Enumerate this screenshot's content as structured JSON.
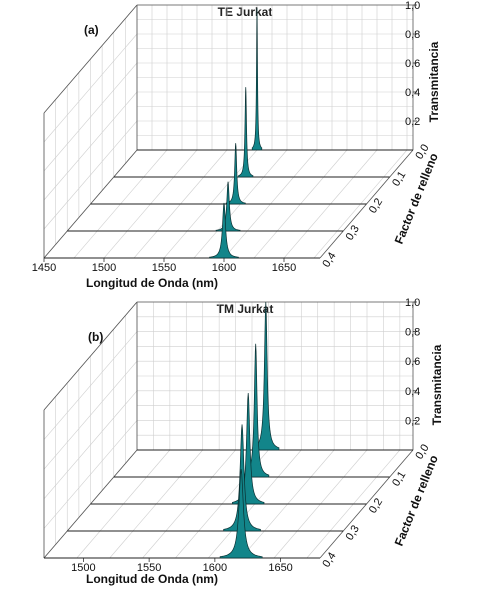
{
  "chart_data": [
    {
      "type": "area",
      "panel_label": "(a)",
      "title": "TE Jurkat",
      "xlabel": "Longitud de Onda (nm)",
      "ylabel": "Factor de relleno",
      "zlabel": "Transmitancia",
      "x_ticks": [
        "1450",
        "1500",
        "1550",
        "1600",
        "1650"
      ],
      "y_ticks": [
        "0,0",
        "0,1",
        "0,2",
        "0,3",
        "0,4"
      ],
      "z_ticks": [
        "0,2",
        "0,4",
        "0,6",
        "0,8",
        "1,0"
      ],
      "xlim": [
        1450,
        1680
      ],
      "ylim": [
        0,
        0.4
      ],
      "zlim": [
        0,
        1.0
      ],
      "series": [
        {
          "fill_factor": 0.0,
          "peak_wavelength": 1550,
          "peak_transmittance": 0.98,
          "width_nm": 1.0
        },
        {
          "fill_factor": 0.1,
          "peak_wavelength": 1560,
          "peak_transmittance": 0.62,
          "width_nm": 1.5
        },
        {
          "fill_factor": 0.2,
          "peak_wavelength": 1571,
          "peak_transmittance": 0.42,
          "width_nm": 2.0
        },
        {
          "fill_factor": 0.3,
          "peak_wavelength": 1584,
          "peak_transmittance": 0.34,
          "width_nm": 2.5
        },
        {
          "fill_factor": 0.4,
          "peak_wavelength": 1600,
          "peak_transmittance": 0.38,
          "width_nm": 3.0
        }
      ],
      "colors": {
        "fill": "#12858a",
        "line": "#0a2f31"
      }
    },
    {
      "type": "area",
      "panel_label": "(b)",
      "title": "TM Jurkat",
      "xlabel": "Longitud de Onda (nm)",
      "ylabel": "Factor de relleno",
      "zlabel": "Transmitancia",
      "x_ticks": [
        "1500",
        "1550",
        "1600",
        "1650"
      ],
      "y_ticks": [
        "0,0",
        "0,1",
        "0,2",
        "0,3",
        "0,4"
      ],
      "z_ticks": [
        "0,2",
        "0,4",
        "0,6",
        "0,8",
        "1,0"
      ],
      "xlim": [
        1470,
        1680
      ],
      "ylim": [
        0,
        0.4
      ],
      "zlim": [
        0,
        1.0
      ],
      "series": [
        {
          "fill_factor": 0.0,
          "peak_wavelength": 1568,
          "peak_transmittance": 1.0,
          "width_nm": 2.5
        },
        {
          "fill_factor": 0.1,
          "peak_wavelength": 1578,
          "peak_transmittance": 0.9,
          "width_nm": 2.5
        },
        {
          "fill_factor": 0.2,
          "peak_wavelength": 1590,
          "peak_transmittance": 0.75,
          "width_nm": 3.0
        },
        {
          "fill_factor": 0.3,
          "peak_wavelength": 1603,
          "peak_transmittance": 0.72,
          "width_nm": 3.5
        },
        {
          "fill_factor": 0.4,
          "peak_wavelength": 1620,
          "peak_transmittance": 0.6,
          "width_nm": 4.0
        }
      ],
      "colors": {
        "fill": "#12858a",
        "line": "#0a2f31"
      }
    }
  ]
}
